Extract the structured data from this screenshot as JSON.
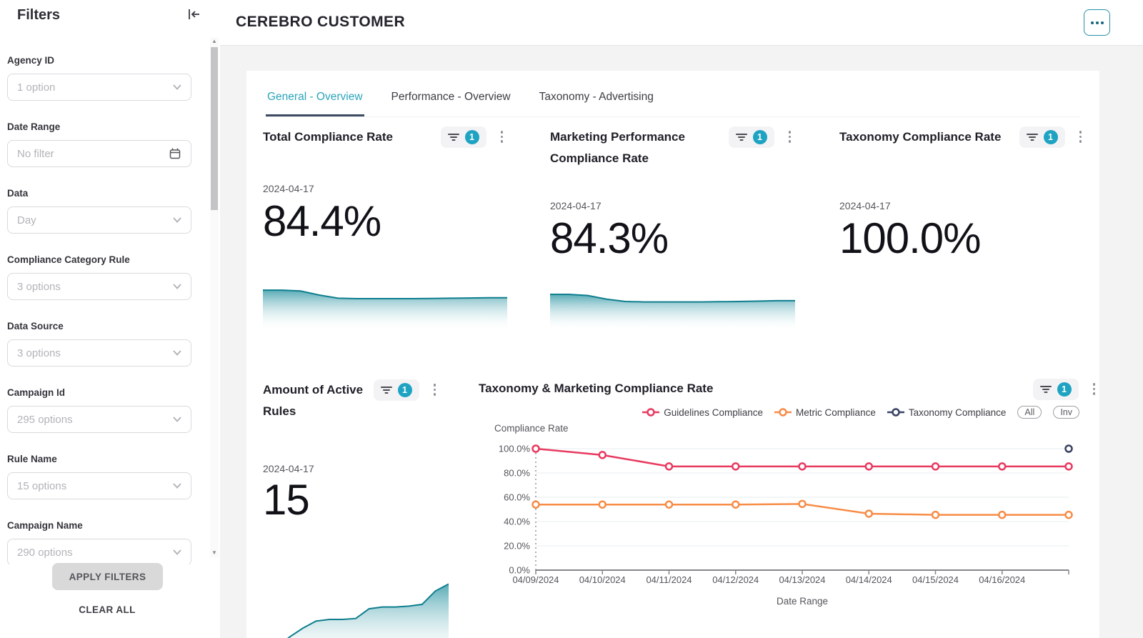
{
  "sidebar": {
    "title": "Filters",
    "apply_label": "APPLY FILTERS",
    "clear_label": "CLEAR ALL",
    "filters": [
      {
        "label": "Agency ID",
        "value": "1 option",
        "type": "select"
      },
      {
        "label": "Date Range",
        "value": "No filter",
        "type": "date"
      },
      {
        "label": "Data",
        "value": "Day",
        "type": "select"
      },
      {
        "label": "Compliance Category Rule",
        "value": "3 options",
        "type": "select"
      },
      {
        "label": "Data Source",
        "value": "3 options",
        "type": "select"
      },
      {
        "label": "Campaign Id",
        "value": "295 options",
        "type": "select"
      },
      {
        "label": "Rule Name",
        "value": "15 options",
        "type": "select"
      },
      {
        "label": "Campaign Name",
        "value": "290 options",
        "type": "select"
      }
    ]
  },
  "header": {
    "title": "CEREBRO CUSTOMER"
  },
  "tabs": [
    {
      "label": "General - Overview",
      "active": true
    },
    {
      "label": "Performance - Overview",
      "active": false
    },
    {
      "label": "Taxonomy - Advertising",
      "active": false
    }
  ],
  "kpi_cards": [
    {
      "title": "Total Compliance Rate",
      "date": "2024-04-17",
      "value": "84.4%",
      "badge": "1",
      "sparkline": [
        84,
        84,
        82,
        73,
        66,
        65,
        65,
        65,
        65,
        65.5,
        66,
        66.5,
        67,
        67
      ]
    },
    {
      "title": "Marketing Performance Compliance Rate",
      "date": "2024-04-17",
      "value": "84.3%",
      "badge": "1",
      "sparkline": [
        84,
        84,
        81,
        72,
        66,
        65,
        65,
        65,
        65,
        65.5,
        66,
        67,
        68,
        68
      ]
    },
    {
      "title": "Taxonomy Compliance Rate",
      "date": "2024-04-17",
      "value": "100.0%",
      "badge": "1",
      "sparkline": null
    },
    {
      "title": "Amount of Active Rules",
      "date": "2024-04-17",
      "value": "15",
      "badge": "1",
      "sparkline": [
        4,
        14,
        26,
        36,
        44,
        46,
        46,
        47,
        58,
        60,
        60,
        61,
        63,
        78,
        86
      ]
    }
  ],
  "chart_card": {
    "badge": "1"
  },
  "chart_data": {
    "type": "line",
    "title": "Taxonomy & Marketing Compliance Rate",
    "x": [
      "04/09/2024",
      "04/10/2024",
      "04/11/2024",
      "04/12/2024",
      "04/13/2024",
      "04/14/2024",
      "04/15/2024",
      "04/16/2024",
      ""
    ],
    "series": [
      {
        "name": "Guidelines Compliance",
        "color": "#e8395f",
        "values": [
          100,
          94.8,
          85.4,
          85.4,
          85.4,
          85.4,
          85.4,
          85.4,
          85.4
        ]
      },
      {
        "name": "Metric Compliance",
        "color": "#f78c46",
        "values": [
          54,
          54,
          54,
          54,
          54.5,
          46.5,
          45.5,
          45.5,
          45.5
        ]
      },
      {
        "name": "Taxonomy Compliance",
        "color": "#3a4264",
        "values": [
          null,
          null,
          null,
          null,
          null,
          null,
          null,
          null,
          100
        ]
      }
    ],
    "ylabel": "Compliance Rate",
    "xlabel": "Date Range",
    "ylim": [
      0,
      100
    ],
    "yticks": [
      "0.0%",
      "20.0%",
      "40.0%",
      "60.0%",
      "80.0%",
      "100.0%"
    ],
    "legend_position": "top-right",
    "legend_extra": [
      "All",
      "Inv"
    ],
    "grid": true
  },
  "colors": {
    "accent_teal": "#1fa3c2",
    "tab_active": "#2ba4ba",
    "tab_underline": "#3d4c62",
    "spark_stroke": "#0f7e8e",
    "spark_fill_top": "#58abb6"
  }
}
